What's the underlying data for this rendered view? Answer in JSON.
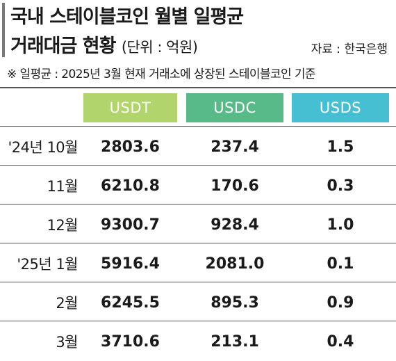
{
  "header": {
    "title_line1": "국내 스테이블코인 월별 일평균",
    "title_line2": "거래대금 현황",
    "unit": "(단위 : 억원)",
    "source": "자료 : 한국은행",
    "note": "※ 일평균 : 2025년 3월 현재 거래소에 상장된 스테이블코인 기준"
  },
  "colors": {
    "USDT": "#b2d46c",
    "USDC": "#58ba88",
    "USDS": "#47bfd3"
  },
  "chart_data": {
    "type": "table",
    "columns": [
      "USDT",
      "USDC",
      "USDS"
    ],
    "rows": [
      {
        "label": "'24년 10월",
        "values": [
          "2803.6",
          "237.4",
          "1.5"
        ]
      },
      {
        "label": "11월",
        "values": [
          "6210.8",
          "170.6",
          "0.3"
        ]
      },
      {
        "label": "12월",
        "values": [
          "9300.7",
          "928.4",
          "1.0"
        ]
      },
      {
        "label": "'25년 1월",
        "values": [
          "5916.4",
          "2081.0",
          "0.1"
        ]
      },
      {
        "label": "2월",
        "values": [
          "6245.5",
          "895.3",
          "0.9"
        ]
      },
      {
        "label": "3월",
        "values": [
          "3710.6",
          "213.1",
          "0.4"
        ]
      }
    ]
  }
}
